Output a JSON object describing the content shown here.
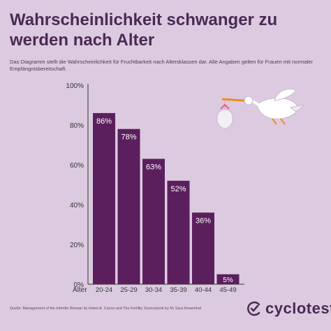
{
  "title": "Wahrscheinlichkeit schwanger zu werden nach Alter",
  "subtitle": "Das  Diagramm stellt die Wahrscheinlichkeit für Fruchtbarkeit nach Altersklassen dar. Alle Angaben gelten für Frauen mit normaler Empfängnisbereitschaft.",
  "source": "Quelle: Management of the Infertile Woman by Helen A. Carcio and The Fertility Sourcebook by M. Sara Rosenthal",
  "logo_text": "cyclotest",
  "colors": {
    "bar": "#5c1f5e",
    "label_text": "#ffffff",
    "background": "#dccbe0",
    "title": "#4a2a55"
  },
  "icons": [
    "stork-with-bundle-illustration",
    "cyclotest-logo-icon"
  ],
  "chart_data": {
    "type": "bar",
    "xlabel": "Alter",
    "ylabel": "",
    "categories": [
      "20-24",
      "25-29",
      "30-34",
      "35-39",
      "40-44",
      "45-49"
    ],
    "values": [
      86,
      78,
      63,
      52,
      36,
      5
    ],
    "value_labels": [
      "86%",
      "78%",
      "63%",
      "52%",
      "36%",
      "5%"
    ],
    "yticks": [
      "0%",
      "20%",
      "40%",
      "60%",
      "80%",
      "100%"
    ],
    "ylim": [
      0,
      100
    ],
    "grid": false,
    "legend": "none"
  }
}
